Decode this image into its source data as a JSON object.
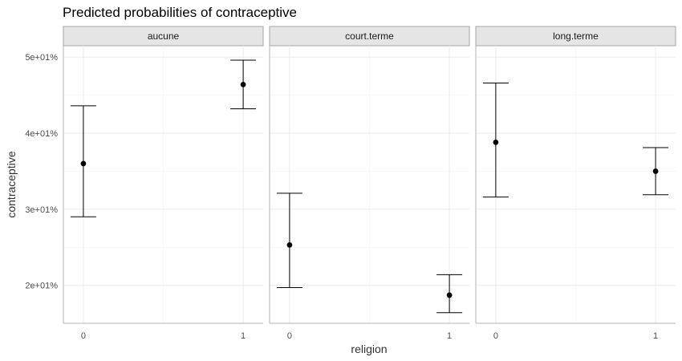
{
  "chart_data": {
    "type": "scatter",
    "title": "Predicted probabilities of contraceptive",
    "xlabel": "religion",
    "ylabel": "contraceptive",
    "x_categories": [
      "0",
      "1"
    ],
    "y_ticks": [
      {
        "value": 20,
        "label": "2e+01%"
      },
      {
        "value": 30,
        "label": "3e+01%"
      },
      {
        "value": 40,
        "label": "4e+01%"
      },
      {
        "value": 50,
        "label": "5e+01%"
      }
    ],
    "ylim": [
      15,
      51.5
    ],
    "grid": true,
    "panels": [
      {
        "name": "aucune",
        "points": [
          {
            "x": "0",
            "y": 36.0,
            "lower": 29.0,
            "upper": 43.6
          },
          {
            "x": "1",
            "y": 46.4,
            "lower": 43.2,
            "upper": 49.6
          }
        ]
      },
      {
        "name": "court.terme",
        "points": [
          {
            "x": "0",
            "y": 25.3,
            "lower": 19.7,
            "upper": 32.1
          },
          {
            "x": "1",
            "y": 18.7,
            "lower": 16.4,
            "upper": 21.4
          }
        ]
      },
      {
        "name": "long.terme",
        "points": [
          {
            "x": "0",
            "y": 38.8,
            "lower": 31.6,
            "upper": 46.6
          },
          {
            "x": "1",
            "y": 35.0,
            "lower": 31.9,
            "upper": 38.1
          }
        ]
      }
    ]
  }
}
